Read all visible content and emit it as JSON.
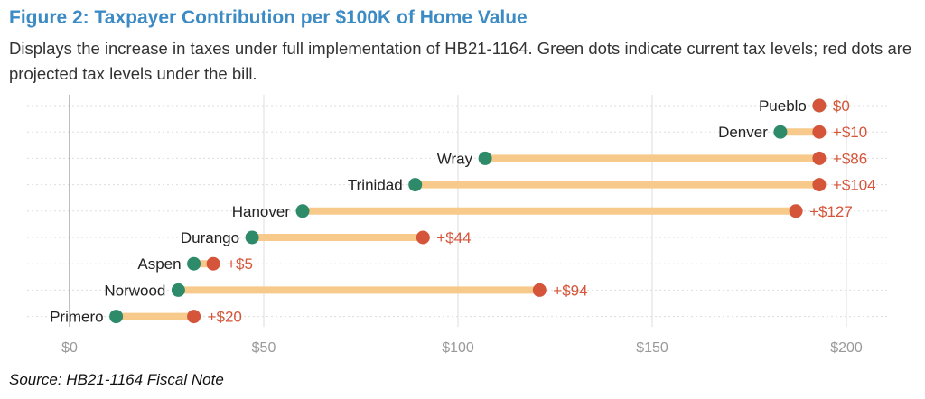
{
  "title": "Figure 2: Taxpayer Contribution per $100K of Home Value",
  "subtitle": "Displays the increase in taxes under full implementation of HB21-1164. Green dots indicate current tax levels; red dots are projected tax levels under the bill.",
  "source": "Source: HB21-1164 Fiscal Note",
  "colors": {
    "current": "#2e8b6a",
    "projected": "#d5553a",
    "connector": "#f7c98a",
    "grid": "#dddddd",
    "axis": "#aaaaaa",
    "tick_label": "#999999",
    "increase_label": "#d5553a",
    "category_label": "#222222"
  },
  "chart_data": {
    "type": "dumbbell",
    "title": "Figure 2: Taxpayer Contribution per $100K of Home Value",
    "xlim": [
      0,
      210
    ],
    "x_ticks": [
      0,
      50,
      100,
      150,
      200
    ],
    "x_tick_labels": [
      "$0",
      "$50",
      "$100",
      "$150",
      "$200"
    ],
    "grid": true,
    "categories": [
      "Pueblo",
      "Denver",
      "Wray",
      "Trinidad",
      "Hanover",
      "Durango",
      "Aspen",
      "Norwood",
      "Primero"
    ],
    "series": [
      {
        "key": "current",
        "values": [
          193,
          183,
          107,
          89,
          60,
          47,
          32,
          28,
          12
        ]
      },
      {
        "key": "projected",
        "values": [
          193,
          193,
          193,
          193,
          187,
          91,
          37,
          121,
          32
        ]
      }
    ],
    "increase_labels": [
      "$0",
      "+$10",
      "+$86",
      "+$104",
      "+$127",
      "+$44",
      "+$5",
      "+$94",
      "+$20"
    ]
  }
}
